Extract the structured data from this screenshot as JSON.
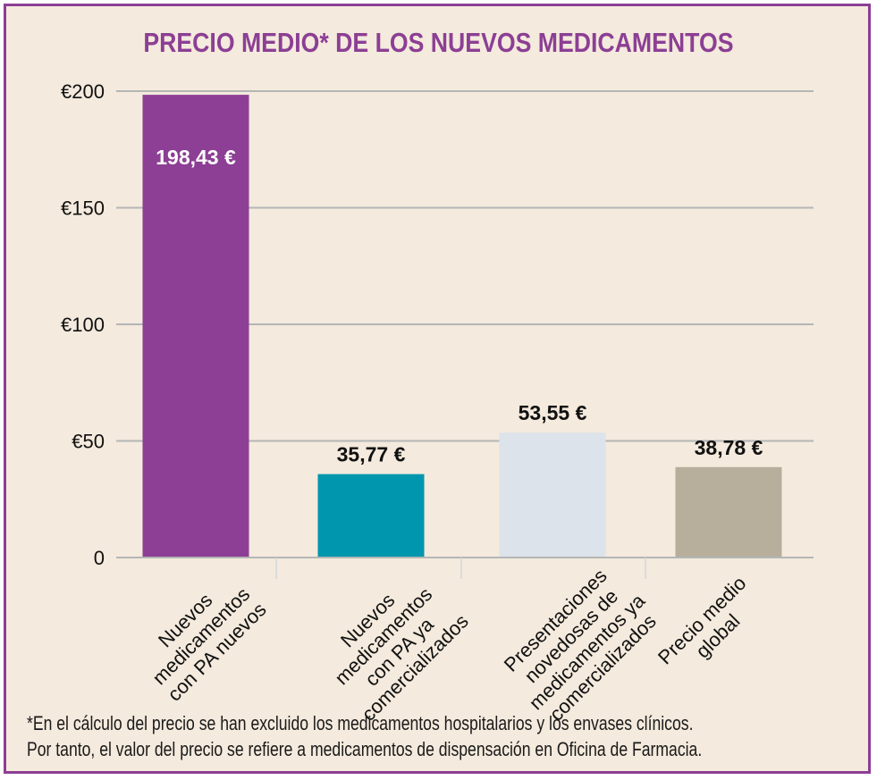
{
  "chart_data": {
    "type": "bar",
    "title": "PRECIO MEDIO* DE LOS NUEVOS MEDICAMENTOS",
    "xlabel": "",
    "ylabel": "",
    "ylim": [
      0,
      200
    ],
    "yticks": [
      0,
      50,
      100,
      150,
      200
    ],
    "ytick_labels": [
      "0",
      "€50",
      "€100",
      "€150",
      "€200"
    ],
    "grid": true,
    "categories": [
      [
        "Nuevos",
        "medicamentos",
        "con PA nuevos"
      ],
      [
        "Nuevos",
        "medicamentos",
        "con PA ya",
        "comercializados"
      ],
      [
        "Presentaciones",
        "novedosas de",
        "medicamentos ya",
        "comercializados"
      ],
      [
        "Precio medio",
        "global"
      ]
    ],
    "values": [
      198.43,
      35.77,
      53.55,
      38.78
    ],
    "data_labels": [
      "198,43 €",
      "35,77 €",
      "53,55 €",
      "38,78 €"
    ],
    "colors": [
      "#8c3f94",
      "#0096ad",
      "#dde3ea",
      "#b7ae9c"
    ],
    "label_inside": [
      true,
      false,
      false,
      false
    ]
  },
  "footnote": {
    "line1": "*En el cálculo del precio se han excluido los medicamentos hospitalarios y los envases clínicos.",
    "line2": "Por tanto, el valor del precio se refiere a medicamentos de dispensación en Oficina de Farmacia."
  },
  "colors": {
    "frame": "#8c3f94",
    "background": "#f4eadd",
    "grid": "#b4b6b6",
    "title": "#8c3f94"
  }
}
